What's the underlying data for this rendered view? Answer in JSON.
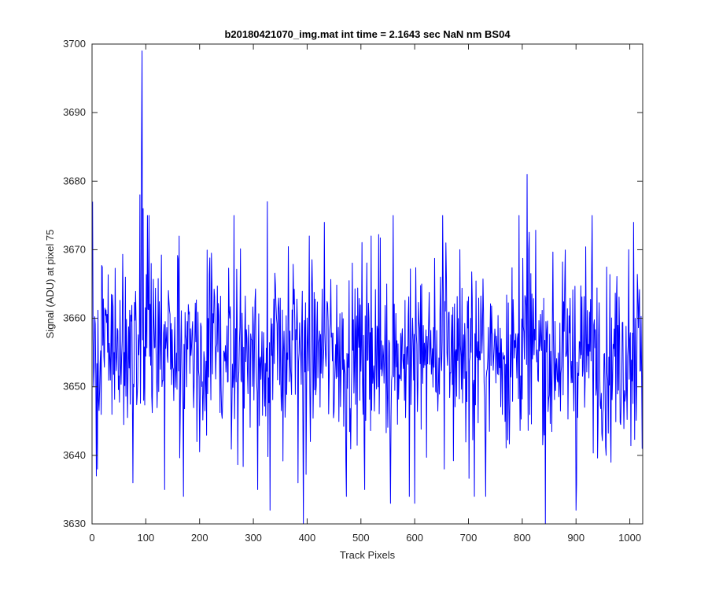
{
  "chart_data": {
    "type": "line",
    "title": "b20180421070_img.mat int time = 2.1643 sec  NaN nm BS04",
    "xlabel": "Track Pixels",
    "ylabel": "Signal (ADU) at pixel 75",
    "xlim": [
      0,
      1024
    ],
    "ylim": [
      3630,
      3700
    ],
    "xticks": [
      0,
      100,
      200,
      300,
      400,
      500,
      600,
      700,
      800,
      900,
      1000
    ],
    "yticks": [
      3630,
      3640,
      3650,
      3660,
      3670,
      3680,
      3690,
      3700
    ],
    "grid": false,
    "legend": "none",
    "series": [
      {
        "color": "#0000ff",
        "x_start": 1,
        "x_step": 1,
        "n_points": 1024,
        "mean_value": 3655,
        "noise_std": 6.5,
        "anchor_points": {
          "x": [
            1,
            3,
            8,
            10,
            62,
            76,
            89,
            92,
            93,
            95,
            103,
            106,
            110,
            135,
            170,
            176,
            195,
            264,
            308,
            326,
            331,
            383,
            393,
            404,
            432,
            473,
            507,
            519,
            555,
            560,
            590,
            600,
            613,
            648,
            652,
            655,
            658,
            684,
            711,
            732,
            794,
            809,
            812,
            843,
            900,
            930,
            956,
            965,
            998,
            1007,
            1010,
            1017,
            1023
          ],
          "y": [
            3677,
            3650,
            3637,
            3638,
            3666,
            3636,
            3678,
            3685,
            3699,
            3676,
            3675,
            3675,
            3668,
            3635,
            3634,
            3650,
            3642,
            3675,
            3635,
            3677,
            3632,
            3636,
            3630,
            3672,
            3674,
            3634,
            3635,
            3672,
            3633,
            3675,
            3634,
            3633,
            3665,
            3666,
            3675,
            3638,
            3671,
            3670,
            3634,
            3634,
            3675,
            3681,
            3670,
            3630,
            3632,
            3675,
            3640,
            3639,
            3670,
            3674,
            3660,
            3662,
            3641
          ]
        }
      }
    ]
  }
}
